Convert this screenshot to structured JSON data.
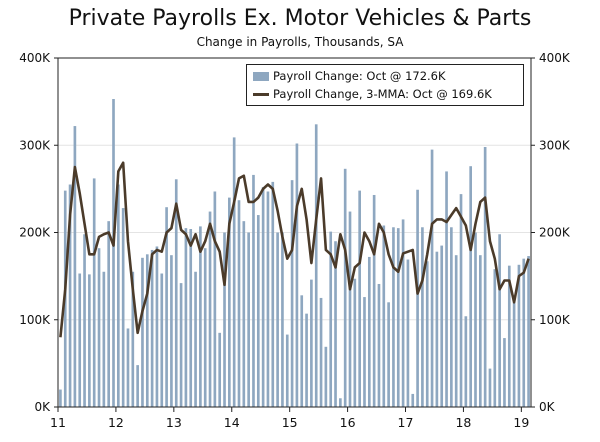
{
  "chart_data": {
    "type": "bar+line",
    "title": "Private Payrolls Ex. Motor Vehicles & Parts",
    "subtitle": "Change in Payrolls, Thousands, SA",
    "ylim": [
      0,
      400
    ],
    "yticks": [
      0,
      100,
      200,
      300,
      400
    ],
    "ytick_labels": [
      "0K",
      "100K",
      "200K",
      "300K",
      "400K"
    ],
    "xticks": [
      "11",
      "12",
      "13",
      "14",
      "15",
      "16",
      "17",
      "18",
      "19"
    ],
    "colors": {
      "bar": "#8ea7c0",
      "line": "#4b3b2a",
      "axis": "#222222"
    },
    "series": [
      {
        "name": "Payroll Change: Oct @ 172.6K",
        "kind": "bar",
        "values": [
          20,
          248,
          255,
          322,
          153,
          198,
          152,
          262,
          182,
          155,
          213,
          353,
          255,
          228,
          90,
          155,
          48,
          171,
          175,
          180,
          184,
          153,
          229,
          174,
          261,
          142,
          205,
          204,
          155,
          207,
          182,
          224,
          247,
          85,
          200,
          240,
          309,
          237,
          213,
          200,
          266,
          220,
          252,
          247,
          258,
          200,
          200,
          83,
          260,
          302,
          128,
          107,
          146,
          324,
          125,
          69,
          201,
          190,
          10,
          273,
          224,
          147,
          248,
          126,
          172,
          243,
          141,
          208,
          120,
          206,
          205,
          215,
          169,
          15,
          249,
          206,
          167,
          295,
          178,
          185,
          270,
          206,
          174,
          244,
          104,
          276,
          200,
          174,
          298,
          44,
          158,
          198,
          79,
          162,
          120,
          163,
          170,
          173
        ]
      },
      {
        "name": "Payroll Change, 3-MMA: Oct @ 169.6K",
        "kind": "line",
        "values": [
          80,
          135,
          220,
          275,
          245,
          210,
          175,
          175,
          195,
          198,
          200,
          185,
          270,
          280,
          190,
          135,
          85,
          110,
          130,
          175,
          180,
          178,
          200,
          205,
          233,
          203,
          198,
          185,
          198,
          178,
          190,
          210,
          190,
          178,
          140,
          210,
          235,
          262,
          265,
          235,
          235,
          240,
          250,
          255,
          250,
          225,
          195,
          170,
          180,
          230,
          250,
          215,
          165,
          215,
          262,
          180,
          175,
          160,
          198,
          180,
          135,
          160,
          165,
          200,
          190,
          175,
          210,
          200,
          175,
          160,
          155,
          176,
          178,
          180,
          130,
          145,
          175,
          210,
          215,
          215,
          212,
          220,
          228,
          218,
          208,
          180,
          210,
          235,
          240,
          190,
          170,
          135,
          145,
          145,
          120,
          150,
          154,
          170
        ]
      }
    ],
    "legend": [
      "Payroll Change: Oct @ 172.6K",
      "Payroll Change, 3-MMA: Oct @ 169.6K"
    ]
  }
}
